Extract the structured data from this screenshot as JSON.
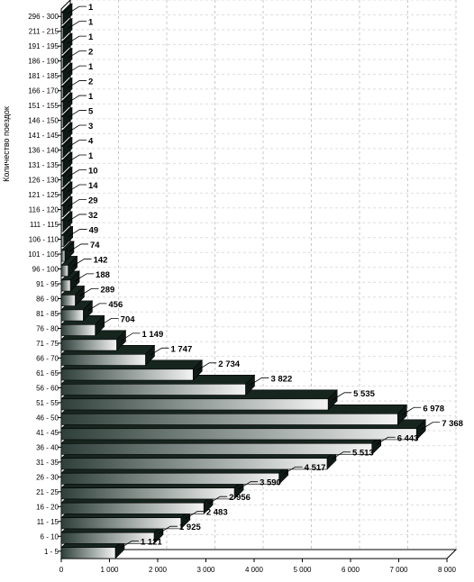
{
  "chart_data": {
    "type": "bar",
    "orientation": "horizontal",
    "ylabel": "Количество поездок",
    "xlim": [
      0,
      8000
    ],
    "x_ticks": [
      0,
      1000,
      2000,
      3000,
      4000,
      5000,
      6000,
      7000,
      8000
    ],
    "x_tick_labels": [
      "0",
      "1 000",
      "2 000",
      "3 000",
      "4 000",
      "5 000",
      "6 000",
      "7 000",
      "8 000"
    ],
    "grid": true,
    "categories": [
      "1 - 5",
      "6 - 10",
      "11 - 15",
      "16 - 20",
      "21 - 25",
      "26 - 30",
      "31 - 35",
      "36 - 40",
      "41 - 45",
      "46 - 50",
      "51 - 55",
      "56 - 60",
      "61 - 65",
      "66 - 70",
      "71 - 75",
      "76 - 80",
      "81 - 85",
      "86 - 90",
      "91 - 95",
      "96 - 100",
      "101 - 105",
      "106 - 110",
      "111 - 115",
      "116 - 120",
      "121 - 125",
      "126 - 130",
      "131 - 135",
      "136 - 140",
      "141 - 145",
      "146 - 150",
      "151 - 155",
      "166 - 170",
      "181 - 185",
      "186 - 190",
      "191 - 195",
      "211 - 215",
      "296 - 300"
    ],
    "values": [
      1121,
      1925,
      2483,
      2956,
      3590,
      4517,
      5513,
      6443,
      7368,
      6978,
      5535,
      3822,
      2734,
      1747,
      1149,
      704,
      456,
      289,
      188,
      142,
      74,
      49,
      32,
      29,
      14,
      10,
      1,
      4,
      3,
      5,
      1,
      2,
      1,
      2,
      1,
      1,
      1
    ],
    "value_labels": [
      "1 121",
      "1 925",
      "2 483",
      "2 956",
      "3 590",
      "4 517",
      "5 513",
      "6 443",
      "7 368",
      "6 978",
      "5 535",
      "3 822",
      "2 734",
      "1 747",
      "1 149",
      "704",
      "456",
      "289",
      "188",
      "142",
      "74",
      "49",
      "32",
      "29",
      "14",
      "10",
      "1",
      "4",
      "3",
      "5",
      "1",
      "2",
      "1",
      "2",
      "1",
      "1",
      "1"
    ],
    "colors": {
      "bar_light": "#f4f4f4",
      "bar_dark": "#2f3f3a",
      "bar_top": "#17251f",
      "bar_side": "#0f1a16",
      "grid": "#c8c8c8",
      "axis": "#000000"
    }
  }
}
